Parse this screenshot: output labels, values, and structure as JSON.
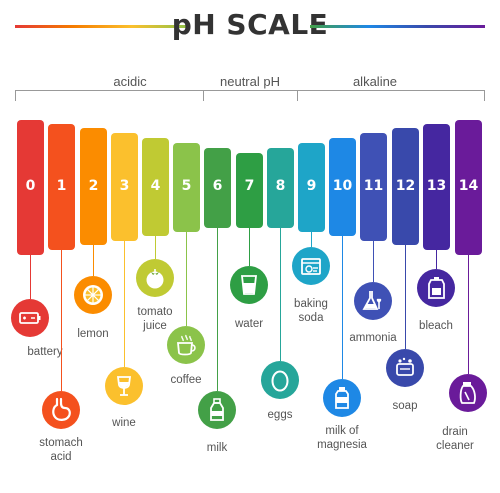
{
  "title": "pH SCALE",
  "regions": {
    "acidic": "acidic",
    "neutral": "neutral pH",
    "alkaline": "alkaline"
  },
  "levels": [
    {
      "ph": "0",
      "color": "#e53935",
      "item": "battery",
      "icon": "battery-icon"
    },
    {
      "ph": "1",
      "color": "#f4511e",
      "item": "stomach acid",
      "icon": "stomach-icon"
    },
    {
      "ph": "2",
      "color": "#fb8c00",
      "item": "lemon",
      "icon": "lemon-icon"
    },
    {
      "ph": "3",
      "color": "#fbc02d",
      "item": "wine",
      "icon": "wine-glass-icon"
    },
    {
      "ph": "4",
      "color": "#c0ca33",
      "item": "tomato juice",
      "icon": "tomato-icon"
    },
    {
      "ph": "5",
      "color": "#8bc34a",
      "item": "coffee",
      "icon": "coffee-cup-icon"
    },
    {
      "ph": "6",
      "color": "#43a047",
      "item": "milk",
      "icon": "milk-bottle-icon"
    },
    {
      "ph": "7",
      "color": "#2e9e44",
      "item": "water",
      "icon": "water-glass-icon"
    },
    {
      "ph": "8",
      "color": "#26a69a",
      "item": "eggs",
      "icon": "egg-icon"
    },
    {
      "ph": "9",
      "color": "#1ea5c8",
      "item": "baking soda",
      "icon": "baking-soda-box-icon"
    },
    {
      "ph": "10",
      "color": "#1e88e5",
      "item": "milk of magnesia",
      "icon": "magnesia-bottle-icon"
    },
    {
      "ph": "11",
      "color": "#3f51b5",
      "item": "ammonia",
      "icon": "flask-icon"
    },
    {
      "ph": "12",
      "color": "#3949ab",
      "item": "soap",
      "icon": "soap-icon"
    },
    {
      "ph": "13",
      "color": "#4527a0",
      "item": "bleach",
      "icon": "bleach-bottle-icon"
    },
    {
      "ph": "14",
      "color": "#6a1b9a",
      "item": "drain cleaner",
      "icon": "drain-cleaner-icon"
    }
  ]
}
